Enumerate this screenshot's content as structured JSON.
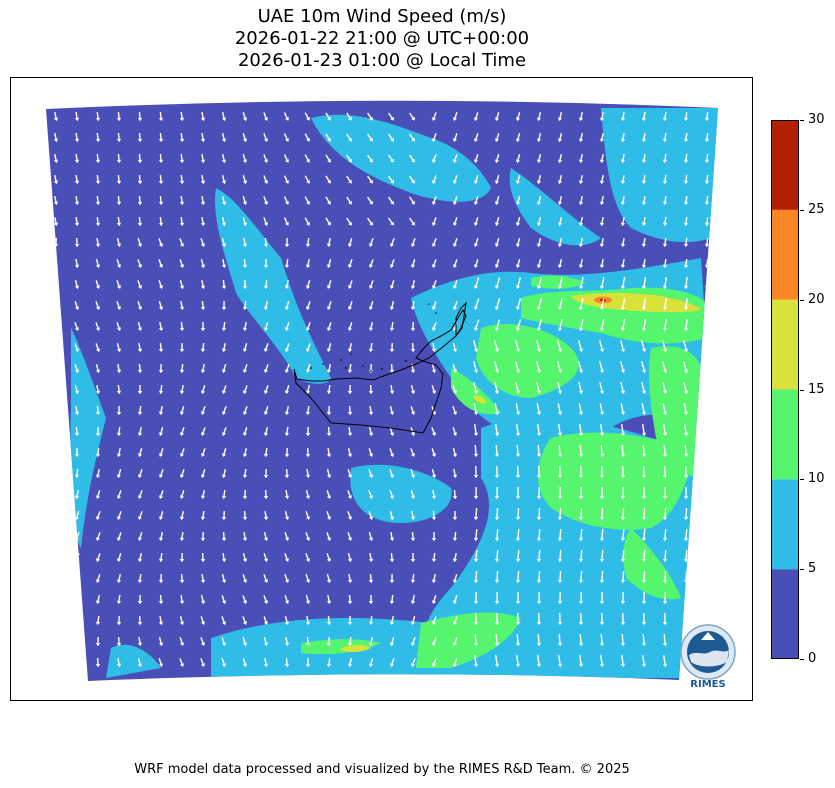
{
  "title": {
    "line1": "UAE 10m Wind Speed (m/s)",
    "line2": "2026-01-22 21:00 @ UTC+00:00",
    "line3": "2026-01-23 01:00 @ Local Time"
  },
  "colorbar": {
    "ticks": [
      "0",
      "5",
      "10",
      "15",
      "20",
      "25",
      "30"
    ],
    "bins": [
      {
        "from": 0,
        "to": 5,
        "color": "#4a4fb8"
      },
      {
        "from": 5,
        "to": 10,
        "color": "#2fbde8"
      },
      {
        "from": 10,
        "to": 15,
        "color": "#55f56e"
      },
      {
        "from": 15,
        "to": 20,
        "color": "#d8e23a"
      },
      {
        "from": 20,
        "to": 25,
        "color": "#fb8628"
      },
      {
        "from": 25,
        "to": 30,
        "color": "#b22103"
      }
    ]
  },
  "logo": {
    "text": "RIMES"
  },
  "footer": "WRF model data processed and visualized by the RIMES R&D Team. © 2025"
}
